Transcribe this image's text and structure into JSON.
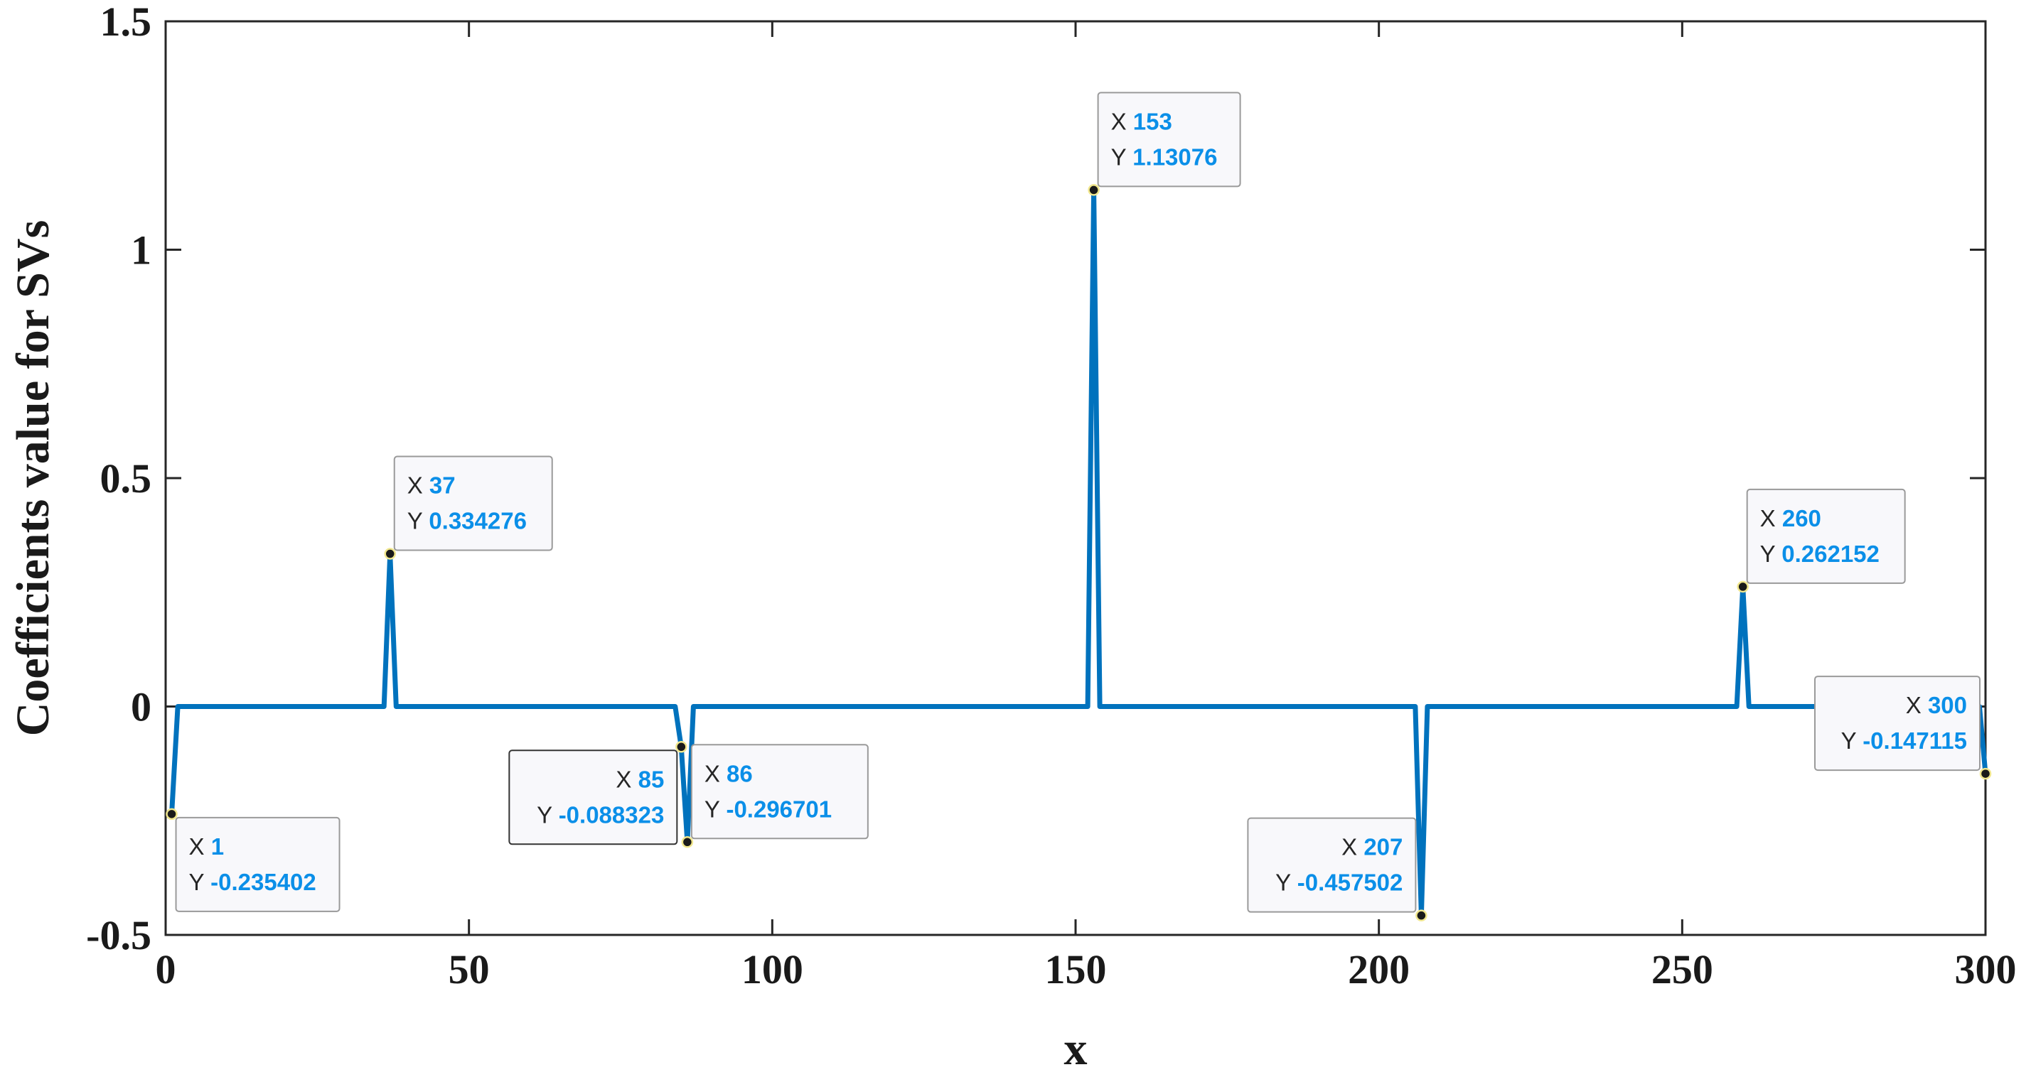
{
  "chart_data": {
    "type": "line",
    "title": "",
    "xlabel": "x",
    "ylabel": "Coefficients value for SVs",
    "xlim": [
      0,
      300
    ],
    "ylim": [
      -0.5,
      1.5
    ],
    "xticks": [
      0,
      50,
      100,
      150,
      200,
      250,
      300
    ],
    "yticks": [
      -0.5,
      0,
      0.5,
      1,
      1.5
    ],
    "ytick_labels": [
      "-0.5",
      "0",
      "0.5",
      "1",
      "1.5"
    ],
    "grid": false,
    "line_color": "#0072bd",
    "series": [
      {
        "x": [
          1,
          2,
          36,
          37,
          38,
          84,
          85,
          86,
          87,
          152,
          153,
          154,
          206,
          207,
          208,
          259,
          260,
          261,
          299,
          300
        ],
        "y": [
          -0.235402,
          0,
          0,
          0.334276,
          0,
          0,
          -0.088323,
          -0.296701,
          0,
          0,
          1.13076,
          0,
          0,
          -0.457502,
          0,
          0,
          0.262152,
          0,
          0,
          -0.147115
        ]
      }
    ],
    "annotations": [
      {
        "x": 1,
        "y": -0.235402,
        "x_text": "1",
        "y_text": "-0.235402",
        "placement": "below-right"
      },
      {
        "x": 37,
        "y": 0.334276,
        "x_text": "37",
        "y_text": "0.334276",
        "placement": "above-right"
      },
      {
        "x": 85,
        "y": -0.088323,
        "x_text": "85",
        "y_text": "-0.088323",
        "placement": "left"
      },
      {
        "x": 86,
        "y": -0.296701,
        "x_text": "86",
        "y_text": "-0.296701",
        "placement": "above-right"
      },
      {
        "x": 153,
        "y": 1.13076,
        "x_text": "153",
        "y_text": "1.13076",
        "placement": "above-right"
      },
      {
        "x": 207,
        "y": -0.457502,
        "x_text": "207",
        "y_text": "-0.457502",
        "placement": "above-left"
      },
      {
        "x": 260,
        "y": 0.262152,
        "x_text": "260",
        "y_text": "0.262152",
        "placement": "above-right"
      },
      {
        "x": 300,
        "y": -0.147115,
        "x_text": "300",
        "y_text": "-0.147115",
        "placement": "above-left"
      }
    ],
    "datatip_labels": {
      "x": "X",
      "y": "Y"
    }
  }
}
